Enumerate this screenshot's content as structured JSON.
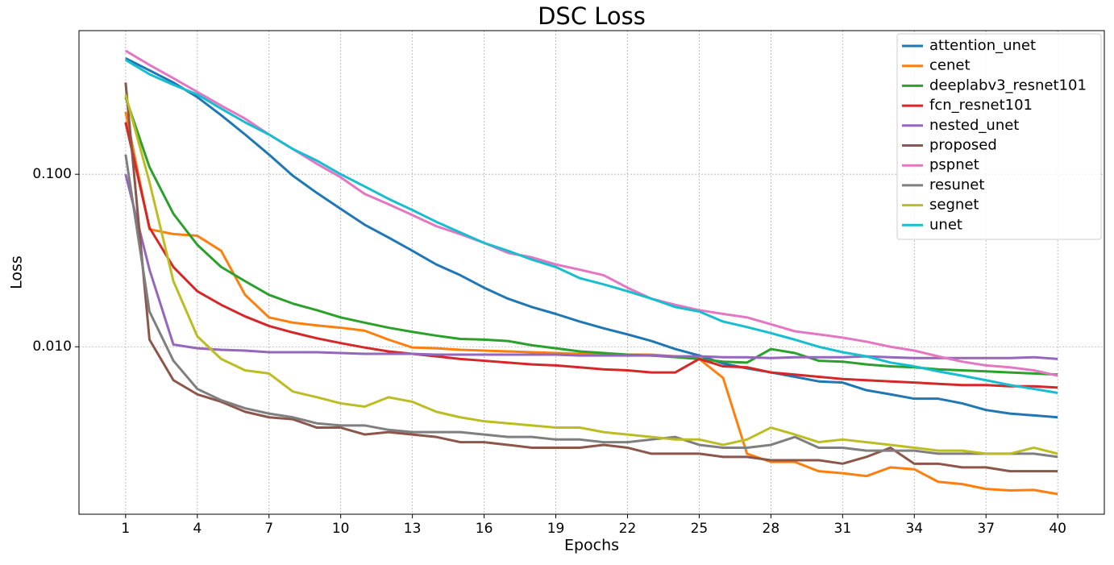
{
  "chart_data": {
    "type": "line",
    "title": "DSC Loss",
    "x_label": "Epochs",
    "y_label": "Loss",
    "x": [
      1,
      2,
      3,
      4,
      5,
      6,
      7,
      8,
      9,
      10,
      11,
      12,
      13,
      14,
      15,
      16,
      17,
      18,
      19,
      20,
      21,
      22,
      23,
      24,
      25,
      26,
      27,
      28,
      29,
      30,
      31,
      32,
      33,
      34,
      35,
      36,
      37,
      38,
      39,
      40
    ],
    "xlim": [
      -0.95,
      41.95
    ],
    "xticks": [
      1,
      4,
      7,
      10,
      13,
      16,
      19,
      22,
      25,
      28,
      31,
      34,
      37,
      40
    ],
    "ylim": [
      0.00107,
      0.68
    ],
    "yticks": [
      {
        "value": 0.1,
        "label": "0.100"
      },
      {
        "value": 0.01,
        "label": "0.010"
      }
    ],
    "log_y": true,
    "grid": true,
    "legend": "upper right",
    "series": [
      {
        "name": "attention_unet",
        "color": "#1f77b4",
        "values": [
          0.47,
          0.4,
          0.34,
          0.28,
          0.22,
          0.17,
          0.13,
          0.098,
          0.078,
          0.063,
          0.051,
          0.043,
          0.036,
          0.03,
          0.026,
          0.022,
          0.019,
          0.017,
          0.0155,
          0.014,
          0.0128,
          0.0118,
          0.0108,
          0.0097,
          0.0089,
          0.008,
          0.0075,
          0.0071,
          0.0067,
          0.0063,
          0.0062,
          0.0056,
          0.0053,
          0.005,
          0.005,
          0.0047,
          0.0043,
          0.0041,
          0.004,
          0.0039
        ]
      },
      {
        "name": "cenet",
        "color": "#ff7f0e",
        "values": [
          0.23,
          0.048,
          0.045,
          0.044,
          0.036,
          0.02,
          0.0148,
          0.0138,
          0.0133,
          0.0129,
          0.0124,
          0.011,
          0.0099,
          0.0098,
          0.0096,
          0.0095,
          0.0094,
          0.0093,
          0.0092,
          0.0091,
          0.009,
          0.009,
          0.009,
          0.0088,
          0.0085,
          0.0066,
          0.0024,
          0.00215,
          0.00215,
          0.0019,
          0.00185,
          0.00178,
          0.002,
          0.00195,
          0.00165,
          0.0016,
          0.0015,
          0.00147,
          0.00148,
          0.0014
        ]
      },
      {
        "name": "deeplabv3_resnet101",
        "color": "#2ca02c",
        "values": [
          0.28,
          0.11,
          0.059,
          0.039,
          0.029,
          0.024,
          0.02,
          0.0178,
          0.0163,
          0.0148,
          0.0138,
          0.0129,
          0.0122,
          0.0116,
          0.0111,
          0.011,
          0.0108,
          0.0102,
          0.0098,
          0.0094,
          0.0092,
          0.009,
          0.0089,
          0.0087,
          0.0085,
          0.0082,
          0.0081,
          0.0097,
          0.0092,
          0.0083,
          0.0082,
          0.0079,
          0.0077,
          0.0076,
          0.0074,
          0.0073,
          0.0072,
          0.0071,
          0.007,
          0.0069
        ]
      },
      {
        "name": "fcn_resnet101",
        "color": "#d62728",
        "values": [
          0.2,
          0.049,
          0.029,
          0.021,
          0.0175,
          0.015,
          0.0132,
          0.0121,
          0.0112,
          0.0105,
          0.0099,
          0.0094,
          0.0091,
          0.0088,
          0.0085,
          0.0083,
          0.0081,
          0.0079,
          0.0078,
          0.0076,
          0.0074,
          0.0073,
          0.0071,
          0.0071,
          0.0085,
          0.0077,
          0.0076,
          0.0071,
          0.0069,
          0.0067,
          0.0065,
          0.0064,
          0.0063,
          0.0062,
          0.0061,
          0.006,
          0.006,
          0.0059,
          0.0059,
          0.0058
        ]
      },
      {
        "name": "nested_unet",
        "color": "#9467bd",
        "values": [
          0.1,
          0.028,
          0.0103,
          0.0098,
          0.0096,
          0.0095,
          0.0093,
          0.0093,
          0.0093,
          0.0092,
          0.0091,
          0.0091,
          0.0091,
          0.009,
          0.009,
          0.009,
          0.009,
          0.009,
          0.009,
          0.0089,
          0.0089,
          0.0089,
          0.0089,
          0.0088,
          0.0088,
          0.0087,
          0.0087,
          0.0086,
          0.0087,
          0.0087,
          0.0087,
          0.0088,
          0.0087,
          0.0086,
          0.0086,
          0.0086,
          0.0086,
          0.0086,
          0.0087,
          0.0085
        ]
      },
      {
        "name": "proposed",
        "color": "#8c564b",
        "values": [
          0.34,
          0.011,
          0.0064,
          0.0053,
          0.0048,
          0.0042,
          0.0039,
          0.0038,
          0.0034,
          0.0034,
          0.0031,
          0.0032,
          0.0031,
          0.003,
          0.0028,
          0.0028,
          0.0027,
          0.0026,
          0.0026,
          0.0026,
          0.0027,
          0.0026,
          0.0024,
          0.0024,
          0.0024,
          0.0023,
          0.0023,
          0.0022,
          0.0022,
          0.0022,
          0.0021,
          0.0023,
          0.0026,
          0.0021,
          0.0021,
          0.002,
          0.002,
          0.0019,
          0.0019,
          0.0019
        ]
      },
      {
        "name": "pspnet",
        "color": "#e377c2",
        "values": [
          0.52,
          0.43,
          0.36,
          0.3,
          0.25,
          0.21,
          0.17,
          0.14,
          0.115,
          0.096,
          0.077,
          0.067,
          0.058,
          0.05,
          0.045,
          0.04,
          0.035,
          0.033,
          0.03,
          0.028,
          0.026,
          0.022,
          0.019,
          0.0175,
          0.0163,
          0.0155,
          0.0148,
          0.0135,
          0.0123,
          0.0118,
          0.0113,
          0.0107,
          0.01,
          0.0095,
          0.0088,
          0.0082,
          0.0078,
          0.0076,
          0.0073,
          0.0068
        ]
      },
      {
        "name": "resunet",
        "color": "#7f7f7f",
        "values": [
          0.13,
          0.016,
          0.0083,
          0.0057,
          0.0049,
          0.0044,
          0.0041,
          0.0039,
          0.0036,
          0.0035,
          0.0035,
          0.0033,
          0.0032,
          0.0032,
          0.0032,
          0.0031,
          0.003,
          0.003,
          0.0029,
          0.0029,
          0.0028,
          0.0028,
          0.0029,
          0.003,
          0.0027,
          0.0026,
          0.0026,
          0.0027,
          0.003,
          0.0026,
          0.0026,
          0.0025,
          0.0025,
          0.0025,
          0.0024,
          0.0024,
          0.0024,
          0.0024,
          0.0024,
          0.0023
        ]
      },
      {
        "name": "segnet",
        "color": "#bcbd22",
        "values": [
          0.29,
          0.09,
          0.024,
          0.0115,
          0.0085,
          0.0073,
          0.007,
          0.0055,
          0.0051,
          0.0047,
          0.0045,
          0.0051,
          0.0048,
          0.0042,
          0.0039,
          0.0037,
          0.0036,
          0.0035,
          0.0034,
          0.0034,
          0.0032,
          0.0031,
          0.003,
          0.0029,
          0.0029,
          0.0027,
          0.0029,
          0.0034,
          0.0031,
          0.0028,
          0.0029,
          0.0028,
          0.0027,
          0.0026,
          0.0025,
          0.0025,
          0.0024,
          0.0024,
          0.0026,
          0.0024
        ]
      },
      {
        "name": "unet",
        "color": "#17becf",
        "values": [
          0.46,
          0.38,
          0.33,
          0.29,
          0.24,
          0.2,
          0.17,
          0.14,
          0.12,
          0.1,
          0.085,
          0.072,
          0.062,
          0.053,
          0.046,
          0.04,
          0.036,
          0.032,
          0.029,
          0.025,
          0.023,
          0.021,
          0.019,
          0.017,
          0.016,
          0.014,
          0.013,
          0.012,
          0.011,
          0.01,
          0.0093,
          0.0088,
          0.0081,
          0.0077,
          0.0072,
          0.0068,
          0.0064,
          0.006,
          0.0057,
          0.0054
        ]
      }
    ]
  }
}
